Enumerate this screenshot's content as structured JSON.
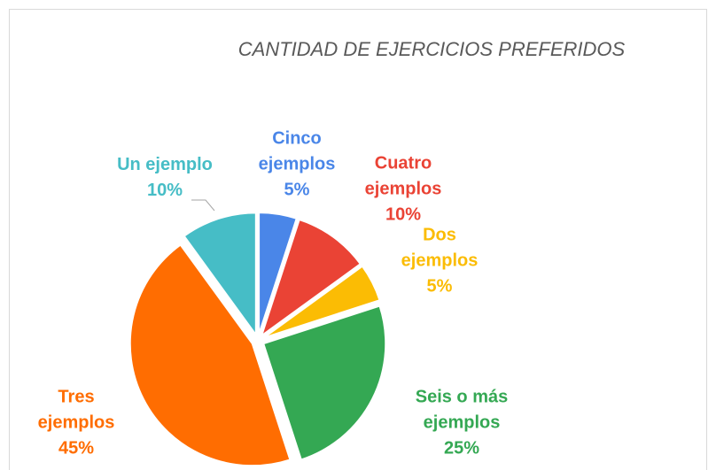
{
  "chart_data": {
    "type": "pie",
    "title": "CANTIDAD DE EJERCICIOS PREFERIDOS",
    "categories": [
      "Cinco ejemplos",
      "Cuatro ejemplos",
      "Dos ejemplos",
      "Seis o más ejemplos",
      "Tres ejemplos",
      "Un ejemplo"
    ],
    "values": [
      5,
      10,
      5,
      25,
      45,
      10
    ],
    "value_labels": [
      "5%",
      "10%",
      "5%",
      "25%",
      "45%",
      "10%"
    ],
    "colors": [
      "#4a86e8",
      "#ea4335",
      "#fbbc04",
      "#34a853",
      "#ff6d01",
      "#46bdc6"
    ]
  }
}
